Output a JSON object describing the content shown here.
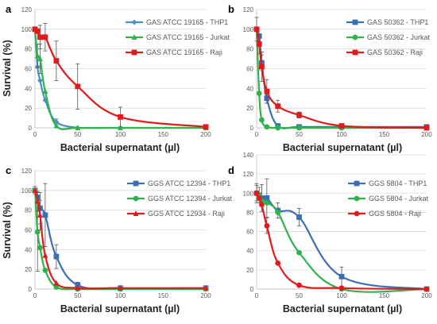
{
  "chart_data": [
    {
      "panel": "a",
      "type": "line",
      "ylabel": "Survival (%)",
      "xlabel": "Bacterial supernatant (µl)",
      "ylim": [
        0,
        120
      ],
      "yticks": [
        0,
        20,
        40,
        60,
        80,
        100,
        120
      ],
      "xlim": [
        0,
        200
      ],
      "xticks": [
        0,
        50,
        100,
        150,
        200
      ],
      "grid": true,
      "legend_position": "top-right",
      "series": [
        {
          "name": "GAS ATCC 19165 - THP1",
          "color": "#4a90c8",
          "marker": "diamond",
          "x": [
            0,
            3,
            6,
            12,
            25,
            50
          ],
          "y": [
            100,
            62,
            48,
            28,
            6,
            0
          ],
          "err": [
            0,
            0,
            0,
            0,
            3,
            0
          ]
        },
        {
          "name": "GAS ATCC 19165 - Jurkat",
          "color": "#2db34a",
          "marker": "triangle",
          "x": [
            0,
            3,
            6,
            12,
            25,
            50,
            100,
            200
          ],
          "y": [
            100,
            73,
            70,
            37,
            2,
            0,
            0,
            0
          ],
          "err": [
            0,
            12,
            15,
            0,
            0,
            0,
            0,
            0
          ]
        },
        {
          "name": "GAS ATCC 19165 - Raji",
          "color": "#e31a1c",
          "marker": "square",
          "x": [
            0,
            3,
            6,
            12,
            25,
            50,
            100,
            200
          ],
          "y": [
            100,
            98,
            92,
            92,
            68,
            42,
            11,
            1
          ],
          "err": [
            0,
            0,
            12,
            14,
            20,
            23,
            10,
            0
          ]
        }
      ]
    },
    {
      "panel": "b",
      "type": "line",
      "ylabel": "",
      "xlabel": "Bacterial supernatant (µl)",
      "ylim": [
        0,
        120
      ],
      "yticks": [
        0,
        20,
        40,
        60,
        80,
        100,
        120
      ],
      "xlim": [
        0,
        200
      ],
      "xticks": [
        0,
        50,
        100,
        150,
        200
      ],
      "grid": true,
      "legend_position": "top-right",
      "series": [
        {
          "name": "GAS 50362 - THP1",
          "color": "#3a6fb5",
          "marker": "square",
          "x": [
            0,
            3,
            6,
            12,
            25,
            50,
            100,
            200
          ],
          "y": [
            100,
            93,
            66,
            30,
            2,
            1,
            1,
            1
          ],
          "err": [
            0,
            0,
            8,
            5,
            0,
            0,
            0,
            0
          ]
        },
        {
          "name": "GAS 50362 - Jurkat",
          "color": "#2db34a",
          "marker": "circle",
          "x": [
            0,
            3,
            6,
            12,
            25,
            50,
            100,
            200
          ],
          "y": [
            100,
            35,
            8,
            1,
            0,
            0,
            0,
            0
          ],
          "err": [
            0,
            0,
            0,
            0,
            0,
            0,
            0,
            0
          ]
        },
        {
          "name": "GAS 50362 - Raji",
          "color": "#e31a1c",
          "marker": "square",
          "x": [
            0,
            3,
            6,
            12,
            25,
            50,
            100,
            200
          ],
          "y": [
            100,
            85,
            62,
            37,
            22,
            13,
            2,
            0
          ],
          "err": [
            12,
            10,
            15,
            12,
            6,
            3,
            2,
            0
          ]
        }
      ]
    },
    {
      "panel": "c",
      "type": "line",
      "ylabel": "Survival (%)",
      "xlabel": "Bacterial supernatant (µl)",
      "ylim": [
        0,
        120
      ],
      "yticks": [
        0,
        20,
        40,
        60,
        80,
        100,
        120
      ],
      "xlim": [
        0,
        200
      ],
      "xticks": [
        0,
        50,
        100,
        150,
        200
      ],
      "grid": true,
      "legend_position": "top-right",
      "series": [
        {
          "name": "GGS ATCC 12394 - THP1",
          "color": "#3a6fb5",
          "marker": "square",
          "x": [
            0,
            3,
            6,
            12,
            25,
            50,
            100,
            200
          ],
          "y": [
            100,
            93,
            82,
            75,
            33,
            4,
            1,
            1
          ],
          "err": [
            4,
            0,
            16,
            32,
            12,
            3,
            0,
            0
          ]
        },
        {
          "name": "GGS ATCC 12394 - Jurkat",
          "color": "#2db34a",
          "marker": "circle",
          "x": [
            0,
            3,
            6,
            12,
            25,
            50,
            100,
            200
          ],
          "y": [
            100,
            58,
            42,
            19,
            2,
            0,
            0,
            0
          ],
          "err": [
            0,
            40,
            0,
            0,
            0,
            0,
            0,
            0
          ]
        },
        {
          "name": "GGS ATCC 12934 - Raji",
          "color": "#e31a1c",
          "marker": "triangle",
          "x": [
            0,
            3,
            6,
            12,
            25,
            50,
            100,
            200
          ],
          "y": [
            100,
            89,
            75,
            34,
            6,
            1,
            1,
            1
          ],
          "err": [
            0,
            10,
            15,
            0,
            0,
            0,
            0,
            0
          ]
        }
      ]
    },
    {
      "panel": "d",
      "type": "line",
      "ylabel": "",
      "xlabel": "Bacterial supernatant (µl)",
      "ylim": [
        0,
        140
      ],
      "yticks": [
        0,
        20,
        40,
        60,
        80,
        100,
        120,
        140
      ],
      "xlim": [
        0,
        200
      ],
      "xticks": [
        0,
        50,
        100,
        150,
        200
      ],
      "grid": true,
      "legend_position": "top-right",
      "series": [
        {
          "name": "GGS 5804 - THP1",
          "color": "#3a6fb5",
          "marker": "square",
          "x": [
            0,
            3,
            6,
            12,
            25,
            50,
            100,
            200
          ],
          "y": [
            100,
            98,
            95,
            95,
            82,
            75,
            13,
            0
          ],
          "err": [
            10,
            8,
            14,
            20,
            8,
            9,
            10,
            0
          ]
        },
        {
          "name": "GGS 5804 - Jurkat",
          "color": "#2db34a",
          "marker": "circle",
          "x": [
            0,
            3,
            6,
            12,
            25,
            50,
            100,
            200
          ],
          "y": [
            100,
            98,
            92,
            90,
            80,
            38,
            0,
            0
          ],
          "err": [
            0,
            0,
            0,
            0,
            0,
            0,
            0,
            0
          ]
        },
        {
          "name": "GGS 5804 - Raji",
          "color": "#e31a1c",
          "marker": "circle",
          "x": [
            0,
            3,
            6,
            12,
            25,
            50,
            100,
            200
          ],
          "y": [
            100,
            95,
            88,
            66,
            27,
            4,
            1,
            0
          ],
          "err": [
            8,
            0,
            0,
            8,
            0,
            0,
            0,
            0
          ]
        }
      ]
    }
  ]
}
